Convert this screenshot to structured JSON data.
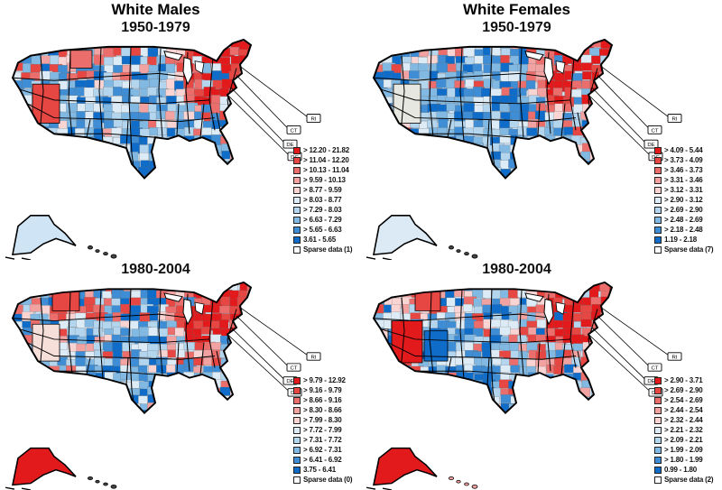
{
  "palette": [
    "#e31a1c",
    "#e74743",
    "#ec6e6c",
    "#f2a3a1",
    "#f9d4d3",
    "#dcebf6",
    "#b3d5ee",
    "#82b9e3",
    "#3f8ed5",
    "#0f6cc8"
  ],
  "sparse_color": "#ffffff",
  "panels": [
    {
      "title": "White Males",
      "subtitle": "1950-1979",
      "legend": [
        "> 12.20 - 21.82",
        "> 11.04 - 12.20",
        "> 10.13 - 11.04",
        "> 9.59 - 10.13",
        "> 8.77 - 9.59",
        "> 8.03 - 8.77",
        "> 7.29 - 8.03",
        "> 6.63 - 7.29",
        "> 5.65 - 6.63",
        "3.61 - 5.65"
      ],
      "sparse_label": "Sparse data (1)",
      "callouts": {
        "ri": "RI",
        "ct": "CT",
        "de": "DE",
        "dc": "DC"
      }
    },
    {
      "title": "White Females",
      "subtitle": "1950-1979",
      "legend": [
        "> 4.09 - 5.44",
        "> 3.73 - 4.09",
        "> 3.46 - 3.73",
        "> 3.31 - 3.46",
        "> 3.12 - 3.31",
        "> 2.90 - 3.12",
        "> 2.69 - 2.90",
        "> 2.48 - 2.69",
        "> 2.18 - 2.48",
        "1.19 - 2.18"
      ],
      "sparse_label": "Sparse data (7)",
      "callouts": {
        "ri": "RI",
        "ct": "CT",
        "de": "DE",
        "dc": "DC"
      }
    },
    {
      "title": "",
      "subtitle": "1980-2004",
      "legend": [
        "> 9.79 - 12.92",
        "> 9.16 - 9.79",
        "> 8.66 - 9.16",
        "> 8.30 - 8.66",
        "> 7.99 - 8.30",
        "> 7.72 - 7.99",
        "> 7.31 - 7.72",
        "> 6.92 - 7.31",
        "> 6.41 - 6.92",
        "3.75 - 6.41"
      ],
      "sparse_label": "Sparse data (0)",
      "callouts": {
        "ri": "RI",
        "ct": "CT",
        "de": "DE",
        "dc": "DC"
      }
    },
    {
      "title": "",
      "subtitle": "1980-2004",
      "legend": [
        "> 2.90 - 3.71",
        "> 2.69 - 2.90",
        "> 2.54 - 2.69",
        "> 2.44 - 2.54",
        "> 2.32 - 2.44",
        "> 2.21 - 2.32",
        "> 2.09 - 2.21",
        "> 1.99 - 2.09",
        "> 1.80 - 1.99",
        "0.99 - 1.80"
      ],
      "sparse_label": "Sparse data (2)",
      "callouts": {
        "ri": "RI",
        "ct": "CT",
        "de": "DE",
        "dc": "DC"
      }
    }
  ]
}
